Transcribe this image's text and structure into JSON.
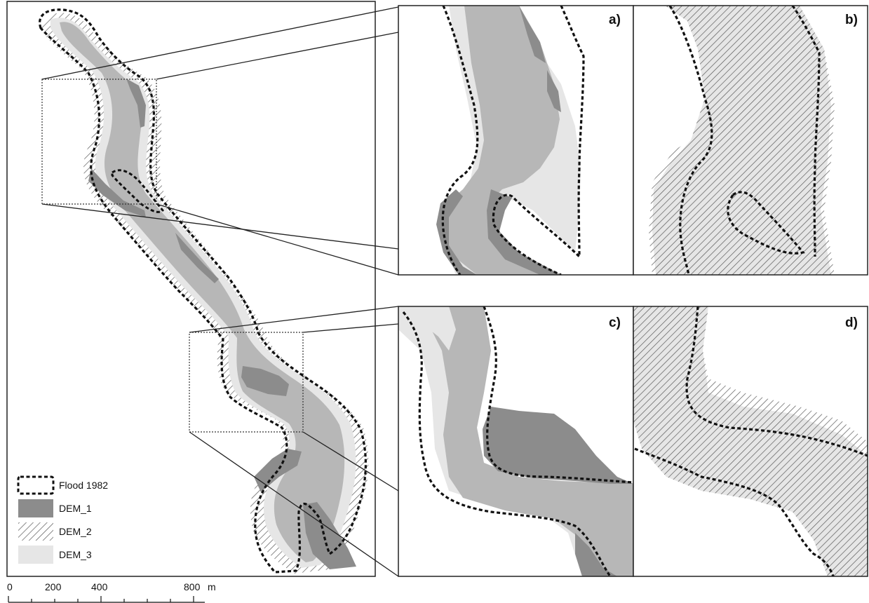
{
  "legend": {
    "items": [
      {
        "key": "flood",
        "label": "Flood 1982"
      },
      {
        "key": "dem1",
        "label": "DEM_1"
      },
      {
        "key": "dem2",
        "label": "DEM_2"
      },
      {
        "key": "dem3",
        "label": "DEM_3"
      }
    ]
  },
  "panels": {
    "a": "a)",
    "b": "b)",
    "c": "c)",
    "d": "d)"
  },
  "scale_bar": {
    "ticks": [
      "0",
      "200",
      "400",
      "800"
    ],
    "unit": "m"
  },
  "colors": {
    "dem1": "#8c8c8c",
    "dem2_hatch": "#5a5a5a",
    "dem3": "#e6e6e6",
    "mid_gray": "#b7b7b7",
    "flood_outline": "#111111"
  }
}
